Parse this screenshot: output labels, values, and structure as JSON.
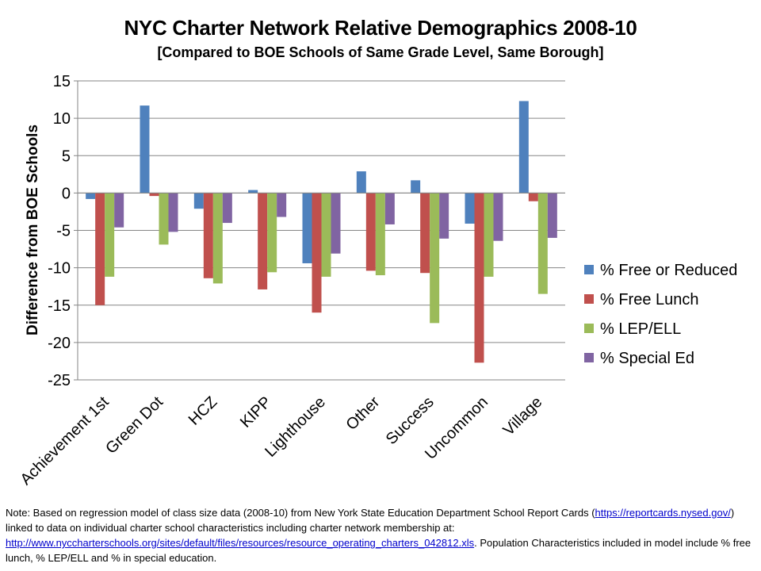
{
  "chart_data": {
    "type": "bar",
    "title": "NYC Charter Network Relative Demographics 2008-10",
    "subtitle": "[Compared to BOE Schools of Same Grade Level, Same Borough]",
    "xlabel": "",
    "ylabel": "Difference from BOE Schools",
    "ylim": [
      -25,
      15
    ],
    "yticks": [
      15,
      10,
      5,
      0,
      -5,
      -10,
      -15,
      -20,
      -25
    ],
    "grid": true,
    "legend_position": "right",
    "categories": [
      "Achievement 1st",
      "Green Dot",
      "HCZ",
      "KIPP",
      "Lighthouse",
      "Other",
      "Success",
      "Uncommon",
      "Village"
    ],
    "series": [
      {
        "name": "% Free or Reduced",
        "color": "#4f81bd",
        "values": [
          -0.8,
          11.7,
          -2.1,
          0.4,
          -9.4,
          2.9,
          1.7,
          -4.1,
          12.3
        ]
      },
      {
        "name": "% Free Lunch",
        "color": "#c0504d",
        "values": [
          -15.0,
          -0.4,
          -11.4,
          -12.9,
          -16.0,
          -10.4,
          -10.7,
          -22.7,
          -1.1
        ]
      },
      {
        "name": "% LEP/ELL",
        "color": "#9bbb59",
        "values": [
          -11.2,
          -6.9,
          -12.1,
          -10.6,
          -11.2,
          -11.0,
          -17.4,
          -11.2,
          -13.5
        ]
      },
      {
        "name": "% Special Ed",
        "color": "#8064a2",
        "values": [
          -4.6,
          -5.2,
          -4.0,
          -3.2,
          -8.1,
          -4.2,
          -6.1,
          -6.4,
          -6.0
        ]
      }
    ]
  },
  "footnote": {
    "prefix": "Note:  Based on regression model of class size data (2008-10) from New York State Education Department School Report Cards (",
    "link1": "https://reportcards.nysed.gov/",
    "middle": ")   linked to data on individual charter school characteristics including charter network membership  at: ",
    "link2": "http://www.nyccharterschools.org/sites/default/files/resources/resource_operating_charters_042812.xls",
    "suffix": ". Population Characteristics included in model include % free lunch, % LEP/ELL and % in special education."
  }
}
